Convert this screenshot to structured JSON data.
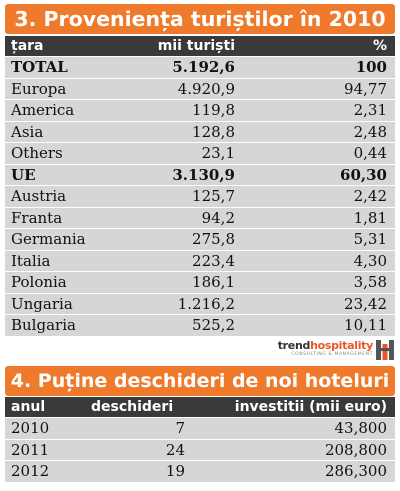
{
  "table1": {
    "title": "3. Proveniența turiștilor în 2010",
    "headers": [
      "țara",
      "mii turiști",
      "%"
    ],
    "rows": [
      {
        "country": "TOTAL",
        "value": "5.192,6",
        "pct": "100",
        "bold": true
      },
      {
        "country": "Europa",
        "value": "4.920,9",
        "pct": "94,77",
        "bold": false
      },
      {
        "country": "America",
        "value": "119,8",
        "pct": "2,31",
        "bold": false
      },
      {
        "country": "Asia",
        "value": "128,8",
        "pct": "2,48",
        "bold": false
      },
      {
        "country": "Others",
        "value": "23,1",
        "pct": "0,44",
        "bold": false
      },
      {
        "country": "UE",
        "value": "3.130,9",
        "pct": "60,30",
        "bold": true
      },
      {
        "country": "Austria",
        "value": "125,7",
        "pct": "2,42",
        "bold": false
      },
      {
        "country": "Franta",
        "value": "94,2",
        "pct": "1,81",
        "bold": false
      },
      {
        "country": "Germania",
        "value": "275,8",
        "pct": "5,31",
        "bold": false
      },
      {
        "country": "Italia",
        "value": "223,4",
        "pct": "4,30",
        "bold": false
      },
      {
        "country": "Polonia",
        "value": "186,1",
        "pct": "3,58",
        "bold": false
      },
      {
        "country": "Ungaria",
        "value": "1.216,2",
        "pct": "23,42",
        "bold": false
      },
      {
        "country": "Bulgaria",
        "value": "525,2",
        "pct": "10,11",
        "bold": false
      }
    ]
  },
  "logo": {
    "brand_a": "trend",
    "brand_b": "hospitality",
    "tagline": "CONSULTING & MANAGEMENT"
  },
  "table2": {
    "title": "4. Puține deschideri de noi hoteluri",
    "headers": [
      "anul",
      "deschideri",
      "investitii (mii euro)"
    ],
    "rows": [
      {
        "year": "2010",
        "openings": "7",
        "investment": "43,800"
      },
      {
        "year": "2011",
        "openings": "24",
        "investment": "208,800"
      },
      {
        "year": "2012",
        "openings": "19",
        "investment": "286,300"
      }
    ]
  },
  "colors": {
    "banner": "#f07a2b",
    "header": "#3a3a3a",
    "row": "#d5d6d6",
    "logo_accent": "#e8562a"
  }
}
